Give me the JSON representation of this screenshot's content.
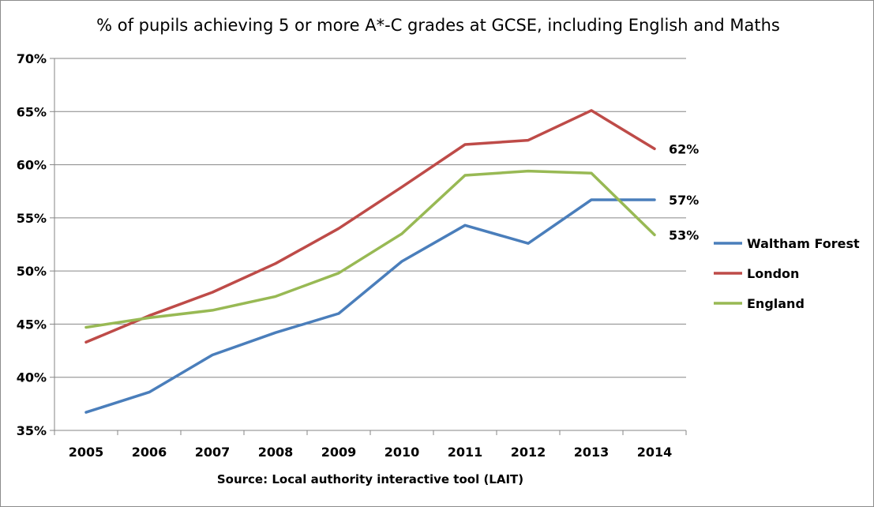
{
  "chart_data": {
    "type": "line",
    "title": "% of pupils achieving 5 or more A*-C grades at GCSE, including English and Maths",
    "xlabel": "Source: Local authority interactive tool (LAIT)",
    "ylabel": "",
    "x": [
      "2005",
      "2006",
      "2007",
      "2008",
      "2009",
      "2010",
      "2011",
      "2012",
      "2013",
      "2014"
    ],
    "ylim": [
      35,
      70
    ],
    "yticks": [
      35,
      40,
      45,
      50,
      55,
      60,
      65,
      70
    ],
    "ytick_labels": [
      "35%",
      "40%",
      "45%",
      "50%",
      "55%",
      "60%",
      "65%",
      "70%"
    ],
    "grid": "horizontal",
    "legend_position": "right",
    "series": [
      {
        "name": "Waltham Forest",
        "color": "#4a7ebb",
        "values": [
          36.7,
          38.6,
          42.1,
          44.2,
          46.0,
          50.9,
          54.3,
          52.6,
          56.7,
          56.7
        ],
        "end_label": "57%"
      },
      {
        "name": "London",
        "color": "#be4b48",
        "values": [
          43.3,
          45.8,
          48.0,
          50.7,
          54.0,
          57.9,
          61.9,
          62.3,
          65.1,
          61.5
        ],
        "end_label": "62%"
      },
      {
        "name": "England",
        "color": "#98b954",
        "values": [
          44.7,
          45.6,
          46.3,
          47.6,
          49.8,
          53.5,
          59.0,
          59.4,
          59.2,
          53.4
        ],
        "end_label": "53%"
      }
    ]
  }
}
